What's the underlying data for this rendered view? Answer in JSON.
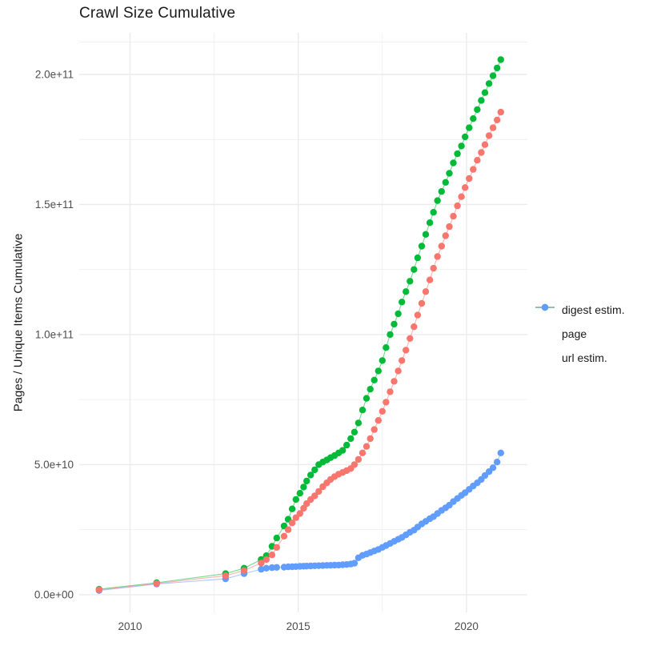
{
  "title": "Crawl Size Cumulative",
  "chart_data": {
    "type": "scatter",
    "title": "Crawl Size Cumulative",
    "xlabel": "",
    "ylabel": "Pages / Unique Items Cumulative",
    "legend_position": "right",
    "grid": true,
    "background": "#ffffff",
    "gridline_color": "#ebebeb",
    "tick_label_color": "#4d4d4d",
    "xlim": [
      2008.49,
      2021.81
    ],
    "ylim": [
      -6800000000.0,
      216000000000.0
    ],
    "x_ticks": {
      "values": [
        2010,
        2015,
        2020
      ],
      "labels": [
        "2010",
        "2015",
        "2020"
      ],
      "minor": [
        2012.5,
        2017.5
      ]
    },
    "y_ticks": {
      "values": [
        0,
        50000000000.0,
        100000000000.0,
        150000000000.0,
        200000000000.0
      ],
      "labels": [
        "0.0e+00",
        "5.0e+10",
        "1.0e+11",
        "1.5e+11",
        "2.0e+11"
      ],
      "minor": [
        25000000000.0,
        75000000000.0,
        125000000000.0,
        175000000000.0,
        212500000000.0
      ]
    },
    "x": [
      2009.08,
      2010.79,
      2012.84,
      2013.39,
      2013.9,
      2014.05,
      2014.22,
      2014.36,
      2014.58,
      2014.7,
      2014.82,
      2014.93,
      2015.05,
      2015.16,
      2015.25,
      2015.37,
      2015.49,
      2015.61,
      2015.73,
      2015.85,
      2015.96,
      2016.08,
      2016.2,
      2016.32,
      2016.44,
      2016.56,
      2016.67,
      2016.79,
      2016.91,
      2017.03,
      2017.14,
      2017.26,
      2017.38,
      2017.5,
      2017.61,
      2017.73,
      2017.85,
      2017.97,
      2018.08,
      2018.2,
      2018.32,
      2018.44,
      2018.55,
      2018.67,
      2018.79,
      2018.91,
      2019.02,
      2019.14,
      2019.26,
      2019.38,
      2019.49,
      2019.61,
      2019.73,
      2019.85,
      2019.96,
      2020.08,
      2020.2,
      2020.32,
      2020.44,
      2020.55,
      2020.67,
      2020.79,
      2020.91,
      2021.02
    ],
    "series": [
      {
        "name": "digest estim.",
        "color": "#F8766D",
        "values": [
          1900000000.0,
          4300000000.0,
          7300000000.0,
          9300000000.0,
          12200000000.0,
          13500000000.0,
          15300000000.0,
          18200000000.0,
          22500000000.0,
          25000000000.0,
          27600000000.0,
          29600000000.0,
          31200000000.0,
          33200000000.0,
          35000000000.0,
          36600000000.0,
          38000000000.0,
          39700000000.0,
          41500000000.0,
          43000000000.0,
          44300000000.0,
          45400000000.0,
          46300000000.0,
          47000000000.0,
          47700000000.0,
          48500000000.0,
          50000000000.0,
          52000000000.0,
          54500000000.0,
          57000000000.0,
          60000000000.0,
          63500000000.0,
          67000000000.0,
          70500000000.0,
          74000000000.0,
          78000000000.0,
          82000000000.0,
          86000000000.0,
          90000000000.0,
          94000000000.0,
          98500000000.0,
          103000000000.0,
          107500000000.0,
          112000000000.0,
          116500000000.0,
          121000000000.0,
          125500000000.0,
          130000000000.0,
          134000000000.0,
          138000000000.0,
          141500000000.0,
          145500000000.0,
          149500000000.0,
          153000000000.0,
          156500000000.0,
          160000000000.0,
          163500000000.0,
          167000000000.0,
          170000000000.0,
          173000000000.0,
          176500000000.0,
          179500000000.0,
          182500000000.0,
          185500000000.0
        ]
      },
      {
        "name": "page",
        "color": "#00BA38",
        "values": [
          2100000000.0,
          4600000000.0,
          8100000000.0,
          10200000000.0,
          13500000000.0,
          15000000000.0,
          18600000000.0,
          21800000000.0,
          26400000000.0,
          29000000000.0,
          33000000000.0,
          36600000000.0,
          39000000000.0,
          41400000000.0,
          43700000000.0,
          46000000000.0,
          48000000000.0,
          50000000000.0,
          51000000000.0,
          51800000000.0,
          52700000000.0,
          53500000000.0,
          54500000000.0,
          55500000000.0,
          57500000000.0,
          60000000000.0,
          62500000000.0,
          66000000000.0,
          71000000000.0,
          75500000000.0,
          79000000000.0,
          82500000000.0,
          86000000000.0,
          90000000000.0,
          95000000000.0,
          100000000000.0,
          104000000000.0,
          108000000000.0,
          112500000000.0,
          116500000000.0,
          120500000000.0,
          125000000000.0,
          129500000000.0,
          134000000000.0,
          138500000000.0,
          143000000000.0,
          147000000000.0,
          151500000000.0,
          155000000000.0,
          158500000000.0,
          162000000000.0,
          166000000000.0,
          169500000000.0,
          172500000000.0,
          176000000000.0,
          179500000000.0,
          183000000000.0,
          186500000000.0,
          190000000000.0,
          193000000000.0,
          196500000000.0,
          199500000000.0,
          202500000000.0,
          205700000000.0
        ]
      },
      {
        "name": "url estim.",
        "color": "#619CFF",
        "values": [
          1600000000.0,
          4100000000.0,
          6100000000.0,
          8100000000.0,
          9800000000.0,
          10200000000.0,
          10400000000.0,
          10500000000.0,
          10600000000.0,
          10700000000.0,
          10750000000.0,
          10800000000.0,
          10900000000.0,
          10950000000.0,
          11000000000.0,
          11050000000.0,
          11100000000.0,
          11150000000.0,
          11200000000.0,
          11250000000.0,
          11300000000.0,
          11350000000.0,
          11400000000.0,
          11500000000.0,
          11600000000.0,
          11800000000.0,
          12100000000.0,
          14200000000.0,
          15100000000.0,
          15600000000.0,
          16200000000.0,
          16800000000.0,
          17400000000.0,
          18200000000.0,
          18900000000.0,
          19700000000.0,
          20500000000.0,
          21300000000.0,
          22000000000.0,
          23000000000.0,
          24000000000.0,
          24800000000.0,
          26000000000.0,
          27200000000.0,
          28200000000.0,
          29200000000.0,
          30000000000.0,
          31200000000.0,
          32400000000.0,
          33400000000.0,
          34400000000.0,
          35800000000.0,
          37000000000.0,
          38200000000.0,
          39200000000.0,
          40500000000.0,
          41800000000.0,
          43000000000.0,
          44300000000.0,
          45800000000.0,
          47300000000.0,
          48800000000.0,
          51000000000.0,
          54500000000.0
        ]
      }
    ],
    "draw_order": [
      1,
      2,
      0
    ]
  },
  "legend": {
    "items": [
      {
        "label": "digest estim."
      },
      {
        "label": "page"
      },
      {
        "label": "url estim."
      }
    ]
  }
}
